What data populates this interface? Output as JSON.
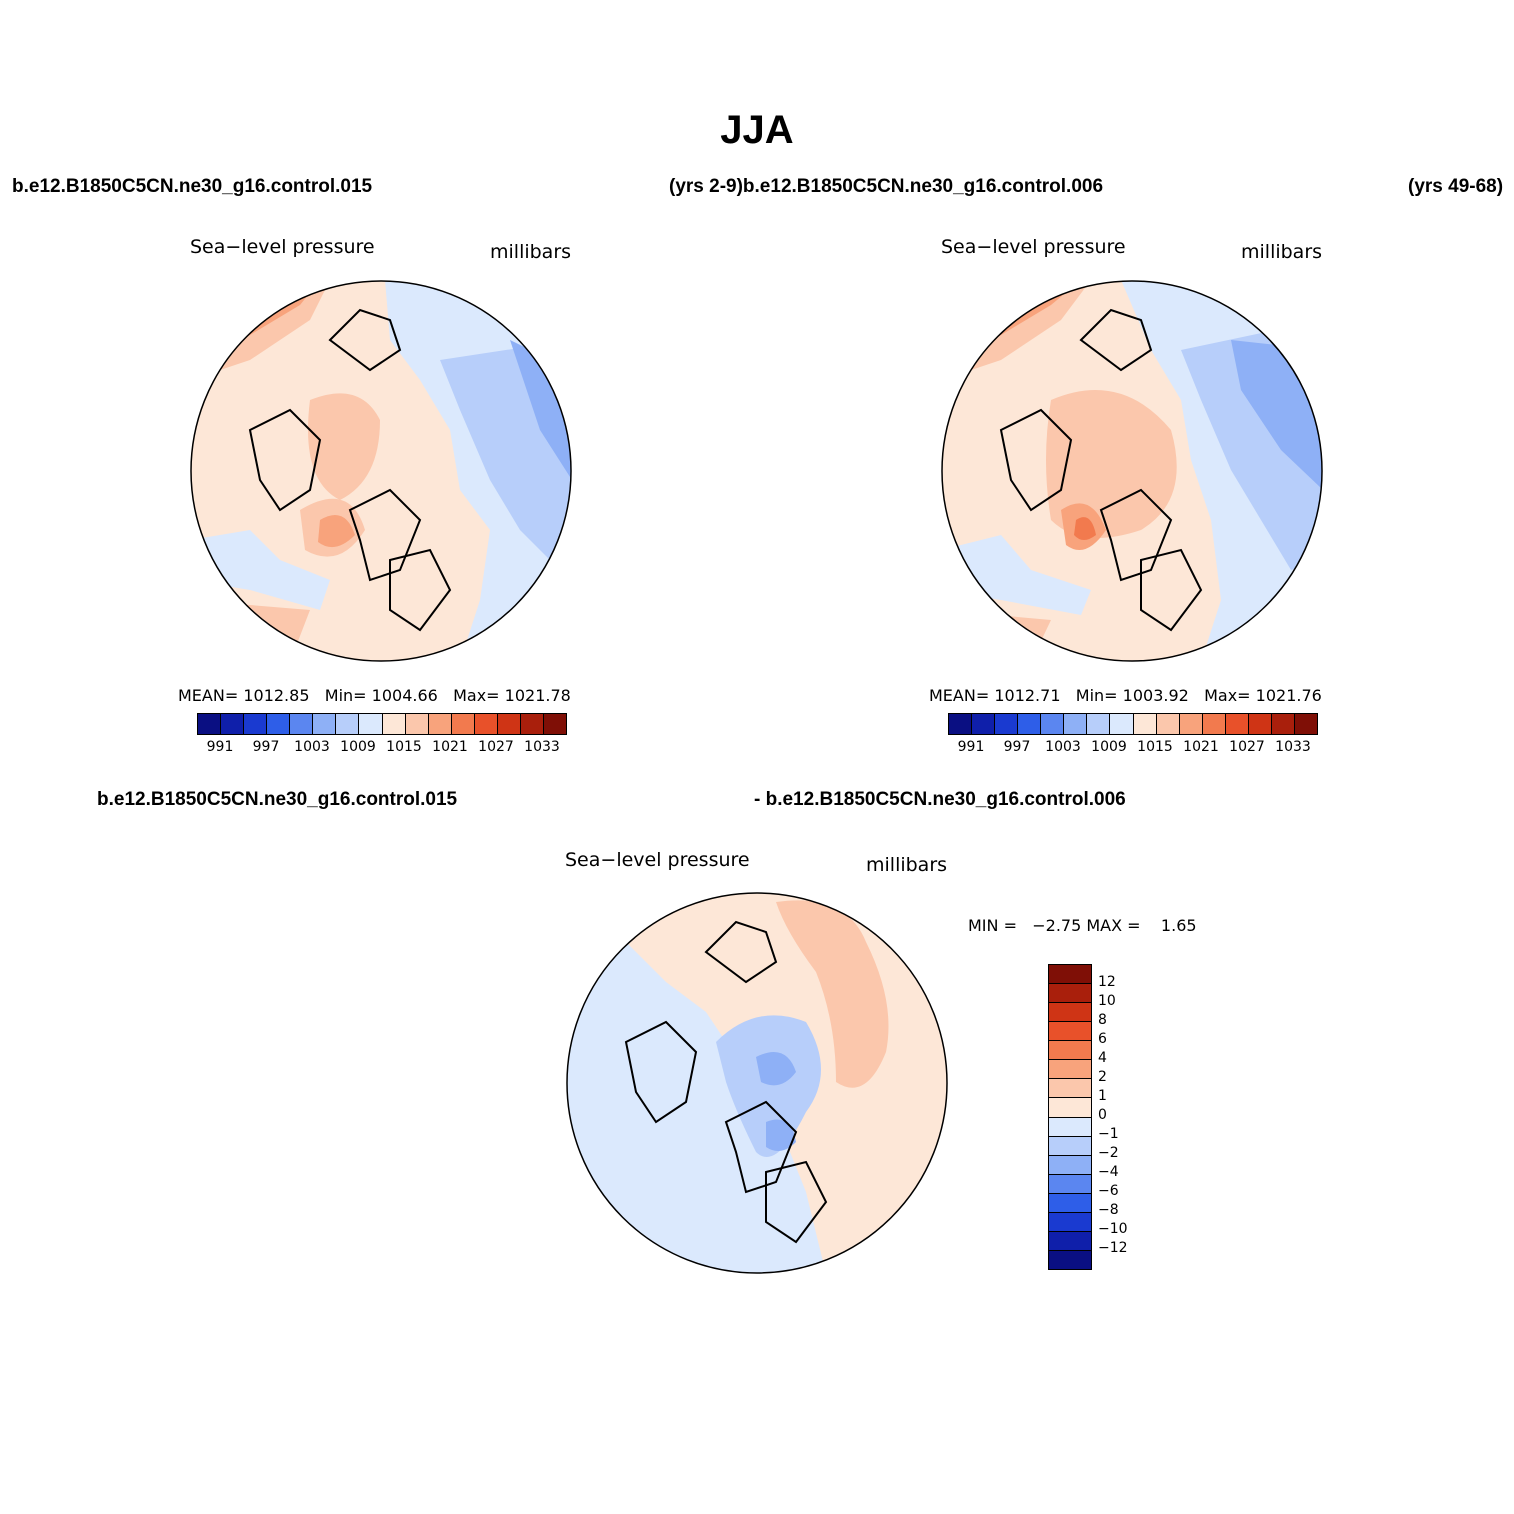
{
  "title": "JJA",
  "header": {
    "case1": "b.e12.B1850C5CN.ne30_g16.control.015",
    "years1_case2": "(yrs 2-9)b.e12.B1850C5CN.ne30_g16.control.006",
    "years2": "(yrs 49-68)"
  },
  "diff_header": {
    "left": "b.e12.B1850C5CN.ne30_g16.control.015",
    "right": "- b.e12.B1850C5CN.ne30_g16.control.006"
  },
  "panel1": {
    "variable": "Sea−level pressure",
    "units": "millibars",
    "mean_label": "MEAN=",
    "mean": "1012.85",
    "min_label": "Min=",
    "min": "1004.66",
    "max_label": "Max=",
    "max": "1021.78"
  },
  "panel2": {
    "variable": "Sea−level pressure",
    "units": "millibars",
    "mean_label": "MEAN=",
    "mean": "1012.71",
    "min_label": "Min=",
    "min": "1003.92",
    "max_label": "Max=",
    "max": "1021.76"
  },
  "panel3": {
    "variable": "Sea−level pressure",
    "units": "millibars",
    "min_label": "MIN =",
    "min": "−2.75",
    "max_label": "MAX =",
    "max": "1.65"
  },
  "colorbar_abs": {
    "ticks": [
      "991",
      "997",
      "1003",
      "1009",
      "1015",
      "1021",
      "1027",
      "1033"
    ],
    "colors": [
      "#0a0f82",
      "#0f1faa",
      "#1a3ad0",
      "#2e5ee8",
      "#5b86f0",
      "#8eb0f6",
      "#b7cefa",
      "#dbe9fd",
      "#fde7d7",
      "#fbc7ac",
      "#f8a37c",
      "#f27a4e",
      "#e8512a",
      "#cf3415",
      "#a91f0c",
      "#7f0f06"
    ]
  },
  "colorbar_diff": {
    "ticks": [
      "12",
      "10",
      "8",
      "6",
      "4",
      "2",
      "1",
      "0",
      "−1",
      "−2",
      "−4",
      "−6",
      "−8",
      "−10",
      "−12"
    ],
    "colors": [
      "#7f0f06",
      "#a91f0c",
      "#cf3415",
      "#e8512a",
      "#f27a4e",
      "#f8a37c",
      "#fbc7ac",
      "#fde7d7",
      "#dbe9fd",
      "#b7cefa",
      "#8eb0f6",
      "#5b86f0",
      "#2e5ee8",
      "#1a3ad0",
      "#0f1faa",
      "#0a0f82"
    ]
  },
  "chart_data": [
    {
      "type": "map",
      "projection": "polar-stereographic-north",
      "variable": "Sea-level pressure",
      "units": "millibars",
      "case": "b.e12.B1850C5CN.ne30_g16.control.015",
      "years": "(yrs 2-9)",
      "mean": 1012.85,
      "min": 1004.66,
      "max": 1021.78,
      "levels": [
        991,
        994,
        997,
        1000,
        1003,
        1006,
        1009,
        1012,
        1015,
        1018,
        1021,
        1024,
        1027,
        1030,
        1033
      ]
    },
    {
      "type": "map",
      "projection": "polar-stereographic-north",
      "variable": "Sea-level pressure",
      "units": "millibars",
      "case": "b.e12.B1850C5CN.ne30_g16.control.006",
      "years": "(yrs 49-68)",
      "mean": 1012.71,
      "min": 1003.92,
      "max": 1021.76,
      "levels": [
        991,
        994,
        997,
        1000,
        1003,
        1006,
        1009,
        1012,
        1015,
        1018,
        1021,
        1024,
        1027,
        1030,
        1033
      ]
    },
    {
      "type": "map",
      "projection": "polar-stereographic-north",
      "variable": "Sea-level pressure difference",
      "units": "millibars",
      "min": -2.75,
      "max": 1.65,
      "levels": [
        -12,
        -10,
        -8,
        -6,
        -4,
        -2,
        -1,
        0,
        1,
        2,
        4,
        6,
        8,
        10,
        12
      ]
    }
  ]
}
